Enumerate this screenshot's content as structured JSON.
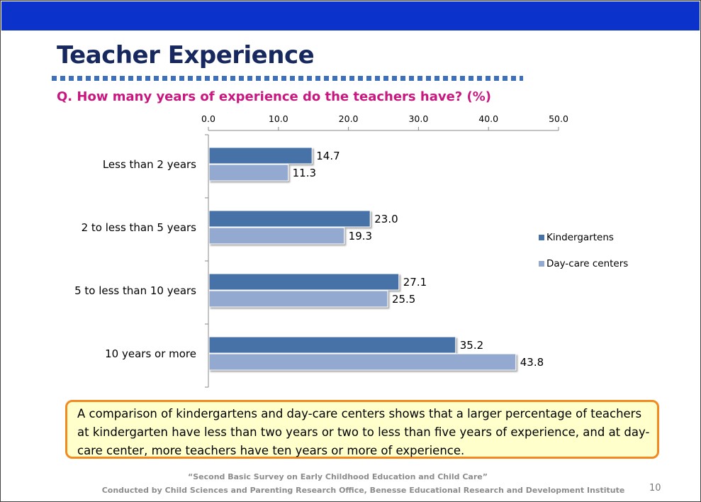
{
  "slide": {
    "title": "Teacher Experience",
    "question": "Q. How many years of experience do the teachers have? (%)",
    "note": "A comparison of kindergartens and day-care centers shows that a larger percentage of teachers at kindergarten have less than two years or two to less than five years of experience, and at day-care center, more teachers have ten years or more of experience.",
    "footer_line1": "“Second Basic Survey on Early Childhood Education and Child Care”",
    "footer_line2": "Conducted by Child Sciences and Parenting Research Office,  Benesse Educational Research and Development Institute",
    "page_number": "10"
  },
  "colors": {
    "band": "#0b33cc",
    "title": "#17285e",
    "question": "#c8187f",
    "kindergartens": "#4672a8",
    "daycare": "#94a9d0",
    "note_border": "#f28a1f",
    "note_bg": "#ffffcc"
  },
  "chart_data": {
    "type": "bar",
    "orientation": "horizontal",
    "categories": [
      "Less than 2 years",
      "2 to less than 5 years",
      "5 to less than 10 years",
      "10 years or more"
    ],
    "series": [
      {
        "name": "Kindergartens",
        "values": [
          14.7,
          23.0,
          27.1,
          35.2
        ],
        "labels": [
          "14.7",
          "23.0",
          "27.1",
          "35.2"
        ]
      },
      {
        "name": "Day-care centers",
        "values": [
          11.3,
          19.3,
          25.5,
          43.8
        ],
        "labels": [
          "11.3",
          "19.3",
          "25.5",
          "43.8"
        ]
      }
    ],
    "xlim": [
      0,
      50
    ],
    "x_ticks": [
      "0.0",
      "10.0",
      "20.0",
      "30.0",
      "40.0",
      "50.0"
    ],
    "x_axis_position": "top",
    "grid": false,
    "legend_position": "right"
  }
}
